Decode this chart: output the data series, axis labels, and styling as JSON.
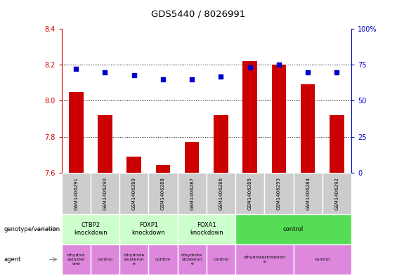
{
  "title": "GDS5440 / 8026991",
  "samples": [
    "GSM1406291",
    "GSM1406290",
    "GSM1406289",
    "GSM1406288",
    "GSM1406287",
    "GSM1406286",
    "GSM1406285",
    "GSM1406293",
    "GSM1406284",
    "GSM1406292"
  ],
  "transformed_count": [
    8.05,
    7.92,
    7.69,
    7.64,
    7.77,
    7.92,
    8.22,
    8.2,
    8.09,
    7.92
  ],
  "percentile_rank": [
    72,
    70,
    68,
    65,
    65,
    67,
    73,
    75,
    70,
    70
  ],
  "ylim_left": [
    7.6,
    8.4
  ],
  "ylim_right": [
    0,
    100
  ],
  "yticks_left": [
    7.6,
    7.8,
    8.0,
    8.2,
    8.4
  ],
  "yticks_right": [
    0,
    25,
    50,
    75,
    100
  ],
  "bar_color": "#cc0000",
  "dot_color": "#0000cc",
  "bar_baseline": 7.6,
  "genotype_groups": [
    {
      "label": "CTBP2\nknockdown",
      "start": 0,
      "end": 2,
      "color": "#ccffcc"
    },
    {
      "label": "FOXP1\nknockdown",
      "start": 2,
      "end": 4,
      "color": "#ccffcc"
    },
    {
      "label": "FOXA1\nknockdown",
      "start": 4,
      "end": 6,
      "color": "#ccffcc"
    },
    {
      "label": "control",
      "start": 6,
      "end": 10,
      "color": "#55dd55"
    }
  ],
  "agent_groups": [
    {
      "label": "dihydrot\nestoster\none",
      "start": 0,
      "end": 1,
      "color": "#dd88dd"
    },
    {
      "label": "control",
      "start": 1,
      "end": 2,
      "color": "#dd88dd"
    },
    {
      "label": "dihydrote\nstosteron\ne",
      "start": 2,
      "end": 3,
      "color": "#dd88dd"
    },
    {
      "label": "control",
      "start": 3,
      "end": 4,
      "color": "#dd88dd"
    },
    {
      "label": "dihydrote\nstosteron\ne",
      "start": 4,
      "end": 5,
      "color": "#dd88dd"
    },
    {
      "label": "control",
      "start": 5,
      "end": 6,
      "color": "#dd88dd"
    },
    {
      "label": "dihydrotestosteron\ne",
      "start": 6,
      "end": 8,
      "color": "#dd88dd"
    },
    {
      "label": "control",
      "start": 8,
      "end": 10,
      "color": "#dd88dd"
    }
  ],
  "left_axis_color": "#cc0000",
  "right_axis_color": "#0000cc",
  "background_color": "#ffffff",
  "table_bg_color": "#cccccc",
  "grid_dotted_at": [
    7.8,
    8.0,
    8.2
  ],
  "bar_width": 0.5
}
